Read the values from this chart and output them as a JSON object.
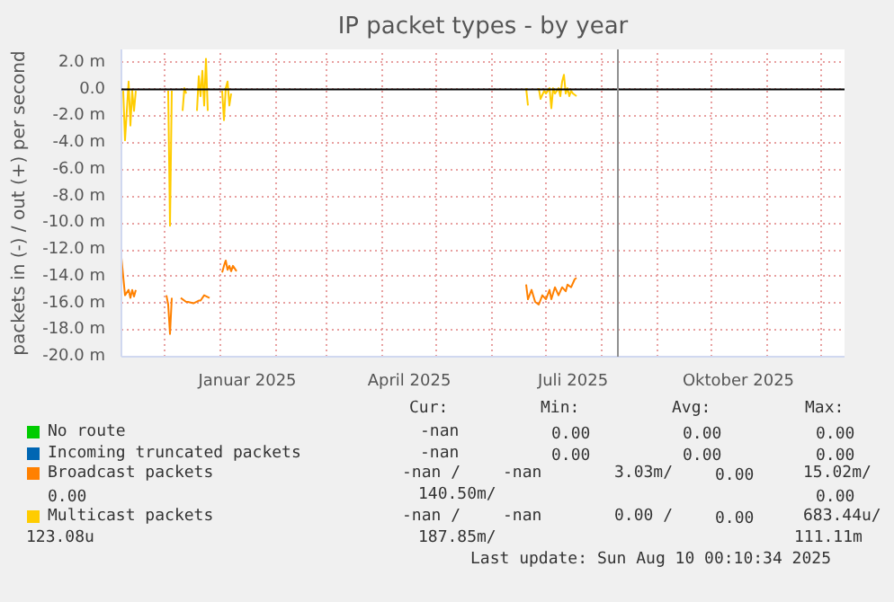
{
  "chart_data": {
    "type": "line",
    "title": "IP packet types - by year",
    "ylabel": "packets in (-) / out (+) per second",
    "xlim": [
      "2024-11-07",
      "2025-12-14"
    ],
    "xticks": [
      {
        "value": "2024-12-01",
        "label": null
      },
      {
        "value": "2025-01-01",
        "label": null
      },
      {
        "value": "2025-01-16",
        "label": "Januar 2025"
      },
      {
        "value": "2025-02-01",
        "label": null
      },
      {
        "value": "2025-03-01",
        "label": null
      },
      {
        "value": "2025-04-01",
        "label": null
      },
      {
        "value": "2025-04-16",
        "label": "April 2025"
      },
      {
        "value": "2025-05-01",
        "label": null
      },
      {
        "value": "2025-06-01",
        "label": null
      },
      {
        "value": "2025-07-01",
        "label": null
      },
      {
        "value": "2025-07-16",
        "label": "Juli 2025"
      },
      {
        "value": "2025-08-01",
        "label": null
      },
      {
        "value": "2025-09-01",
        "label": null
      },
      {
        "value": "2025-10-01",
        "label": null
      },
      {
        "value": "2025-10-16",
        "label": "Oktober 2025"
      },
      {
        "value": "2025-11-01",
        "label": null
      },
      {
        "value": "2025-12-01",
        "label": null
      }
    ],
    "ylim": [
      -20,
      3
    ],
    "yticks": [
      {
        "value": -20,
        "label": "-20.0 m"
      },
      {
        "value": -18,
        "label": "-18.0 m"
      },
      {
        "value": -16,
        "label": "-16.0 m"
      },
      {
        "value": -14,
        "label": "-14.0 m"
      },
      {
        "value": -12,
        "label": "-12.0 m"
      },
      {
        "value": -10,
        "label": "-10.0 m"
      },
      {
        "value": -8,
        "label": "-8.0 m"
      },
      {
        "value": -6,
        "label": "-6.0 m"
      },
      {
        "value": -4,
        "label": "-4.0 m"
      },
      {
        "value": -2,
        "label": "-2.0 m"
      },
      {
        "value": 0,
        "label": "0.0"
      },
      {
        "value": 2,
        "label": "2.0 m"
      }
    ],
    "grid": true,
    "legend": "bottom",
    "ref_lines": [
      {
        "axis": "y",
        "value": 0,
        "color": "#000000"
      },
      {
        "axis": "x",
        "value": "2025-08-10",
        "color": "#909090"
      }
    ],
    "series": [
      {
        "name": "No route",
        "color": "#00cc00"
      },
      {
        "name": "Incoming truncated packets",
        "color": "#0066b3"
      },
      {
        "name": "Broadcast packets",
        "color": "#ff8000",
        "x": [
          "2024-11-07",
          "2024-11-09",
          "2024-11-11",
          "2024-11-12",
          "2024-11-13",
          "2024-11-14",
          "2024-11-15",
          "2024-11-25",
          "2024-12-02",
          "2024-12-03",
          "2024-12-04",
          "2024-12-05",
          "2024-12-08",
          "2024-12-10",
          "2024-12-13",
          "2024-12-14",
          "2024-12-17",
          "2024-12-20",
          "2024-12-21",
          "2024-12-23",
          "2024-12-26",
          "2024-12-28",
          "2025-01-02",
          "2025-01-03",
          "2025-01-04",
          "2025-01-05",
          "2025-01-06",
          "2025-01-07",
          "2025-01-08",
          "2025-01-10",
          "2025-02-01",
          "2025-06-20",
          "2025-06-21",
          "2025-06-23",
          "2025-06-25",
          "2025-06-27",
          "2025-06-29",
          "2025-07-01",
          "2025-07-03",
          "2025-07-04",
          "2025-07-06",
          "2025-07-08",
          "2025-07-10",
          "2025-07-12",
          "2025-07-13",
          "2025-07-15",
          "2025-07-17",
          "2025-07-18"
        ],
        "values": [
          -12.6,
          -15.4,
          -15.0,
          -15.6,
          -15.0,
          -15.5,
          -15.0,
          null,
          -15.4,
          -16.1,
          -18.3,
          -15.6,
          null,
          -15.6,
          -15.9,
          -15.9,
          -16.0,
          -15.8,
          -15.8,
          -15.4,
          -15.6,
          null,
          -13.7,
          -13.2,
          -12.8,
          -13.5,
          -13.2,
          -13.6,
          -13.2,
          -13.6,
          null,
          -14.6,
          -15.7,
          -15.0,
          -15.9,
          -16.1,
          -15.4,
          -15.7,
          -15.0,
          -15.7,
          -14.8,
          -15.4,
          -14.8,
          -15.1,
          -14.6,
          -14.8,
          -14.2,
          -14.1
        ]
      },
      {
        "name": "Multicast packets",
        "color": "#ffcc00",
        "x": [
          "2024-11-08",
          "2024-11-09",
          "2024-11-11",
          "2024-11-12",
          "2024-11-13",
          "2024-11-14",
          "2024-11-15",
          "2024-11-20",
          "2024-12-03",
          "2024-12-04",
          "2024-12-05",
          "2024-12-08",
          "2024-12-11",
          "2024-12-12",
          "2024-12-13",
          "2024-12-15",
          "2024-12-19",
          "2024-12-20",
          "2024-12-21",
          "2024-12-22",
          "2024-12-23",
          "2024-12-24",
          "2024-12-25",
          "2024-12-28",
          "2025-01-02",
          "2025-01-03",
          "2025-01-04",
          "2025-01-05",
          "2025-01-06",
          "2025-01-07",
          "2025-01-10",
          "2025-06-20",
          "2025-06-21",
          "2025-06-24",
          "2025-06-27",
          "2025-06-28",
          "2025-06-30",
          "2025-07-01",
          "2025-07-03",
          "2025-07-04",
          "2025-07-05",
          "2025-07-06",
          "2025-07-08",
          "2025-07-09",
          "2025-07-10",
          "2025-07-11",
          "2025-07-12",
          "2025-07-13",
          "2025-07-14",
          "2025-07-15",
          "2025-07-16",
          "2025-07-18"
        ],
        "values": [
          -0.1,
          -3.8,
          0.6,
          -2.7,
          -0.1,
          -1.6,
          -0.1,
          null,
          -0.1,
          -10.2,
          -0.1,
          null,
          -1.6,
          0.1,
          -0.3,
          null,
          -1.6,
          1.0,
          -0.5,
          1.4,
          -1.2,
          2.3,
          -1.6,
          null,
          -0.1,
          -2.3,
          0.1,
          0.6,
          -1.2,
          -0.3,
          null,
          0.1,
          -1.2,
          null,
          0.1,
          -0.7,
          -0.1,
          -0.3,
          0.1,
          -1.4,
          0.1,
          -0.3,
          0.1,
          -0.5,
          0.6,
          1.1,
          -0.3,
          0.1,
          -0.5,
          -0.1,
          -0.3,
          -0.5
        ]
      }
    ],
    "annotations": [
      "Cur:",
      "Min:",
      "Avg:",
      "Max:",
      "-nan",
      "0.00",
      "0.00",
      "0.00",
      "-nan",
      "0.00",
      "0.00",
      "0.00",
      "-nan /",
      "-nan",
      "3.03m/",
      "0.00",
      "15.02m/",
      "0.00",
      "140.50m/",
      "0.00",
      "-nan /",
      "-nan",
      "0.00 /",
      "0.00",
      "683.44u/",
      "123.08u",
      "187.85m/",
      "111.11m",
      "Last update: Sun Aug 10 00:10:34 2025"
    ]
  }
}
